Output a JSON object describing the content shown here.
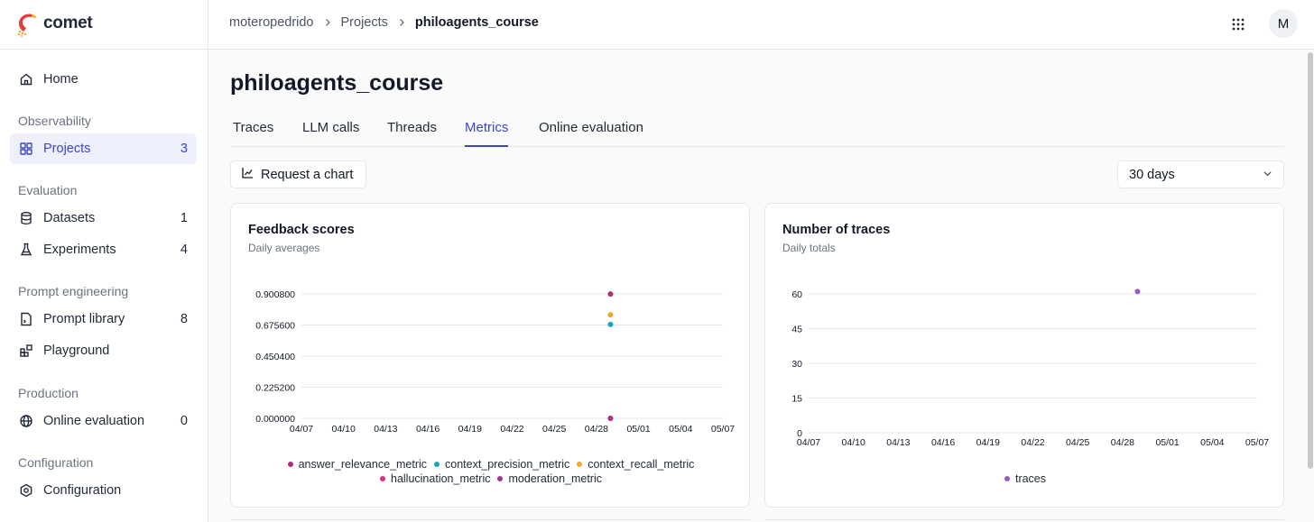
{
  "app": {
    "logo_text": "comet"
  },
  "sidebar": {
    "home": "Home",
    "sections": {
      "observability": "Observability",
      "evaluation": "Evaluation",
      "prompt_engineering": "Prompt engineering",
      "production": "Production",
      "configuration": "Configuration"
    },
    "items": {
      "projects": {
        "label": "Projects",
        "count": "3"
      },
      "datasets": {
        "label": "Datasets",
        "count": "1"
      },
      "experiments": {
        "label": "Experiments",
        "count": "4"
      },
      "prompt_library": {
        "label": "Prompt library",
        "count": "8"
      },
      "playground": {
        "label": "Playground"
      },
      "online_evaluation": {
        "label": "Online evaluation",
        "count": "0"
      },
      "configuration": {
        "label": "Configuration"
      }
    }
  },
  "header": {
    "breadcrumbs": [
      "moteropedrido",
      "Projects",
      "philoagents_course"
    ],
    "avatar": "M"
  },
  "page": {
    "title": "philoagents_course",
    "tabs": [
      "Traces",
      "LLM calls",
      "Threads",
      "Metrics",
      "Online evaluation"
    ],
    "active_tab": "Metrics",
    "request_chart": "Request a chart",
    "range": "30 days"
  },
  "charts": {
    "feedback": {
      "title": "Feedback scores",
      "subtitle": "Daily averages"
    },
    "traces": {
      "title": "Number of traces",
      "subtitle": "Daily totals"
    }
  },
  "chart_data": [
    {
      "type": "scatter",
      "title": "Feedback scores",
      "subtitle": "Daily averages",
      "x_ticks": [
        "04/07",
        "04/10",
        "04/13",
        "04/16",
        "04/19",
        "04/22",
        "04/25",
        "04/28",
        "05/01",
        "05/04",
        "05/07"
      ],
      "y_ticks": [
        "0.000000",
        "0.225200",
        "0.450400",
        "0.675600",
        "0.900800"
      ],
      "ylim": [
        0,
        0.9008
      ],
      "grid": true,
      "legend_position": "bottom",
      "series": [
        {
          "name": "answer_relevance_metric",
          "color": "#b5287a",
          "points": [
            {
              "x": "04/29",
              "y": 0.9
            }
          ]
        },
        {
          "name": "context_precision_metric",
          "color": "#1aa3c4",
          "points": [
            {
              "x": "04/29",
              "y": 0.68
            }
          ]
        },
        {
          "name": "context_recall_metric",
          "color": "#f0a826",
          "points": [
            {
              "x": "04/29",
              "y": 0.75
            }
          ]
        },
        {
          "name": "hallucination_metric",
          "color": "#d8307d",
          "points": [
            {
              "x": "04/29",
              "y": 0.0
            }
          ]
        },
        {
          "name": "moderation_metric",
          "color": "#a93391",
          "points": [
            {
              "x": "04/29",
              "y": 0.0
            }
          ]
        }
      ]
    },
    {
      "type": "scatter",
      "title": "Number of traces",
      "subtitle": "Daily totals",
      "x_ticks": [
        "04/07",
        "04/10",
        "04/13",
        "04/16",
        "04/19",
        "04/22",
        "04/25",
        "04/28",
        "05/01",
        "05/04",
        "05/07"
      ],
      "y_ticks": [
        "0",
        "15",
        "30",
        "45",
        "60"
      ],
      "ylim": [
        0,
        60
      ],
      "grid": true,
      "legend_position": "bottom",
      "series": [
        {
          "name": "traces",
          "color": "#9b59c6",
          "points": [
            {
              "x": "04/29",
              "y": 61
            }
          ]
        }
      ]
    }
  ]
}
